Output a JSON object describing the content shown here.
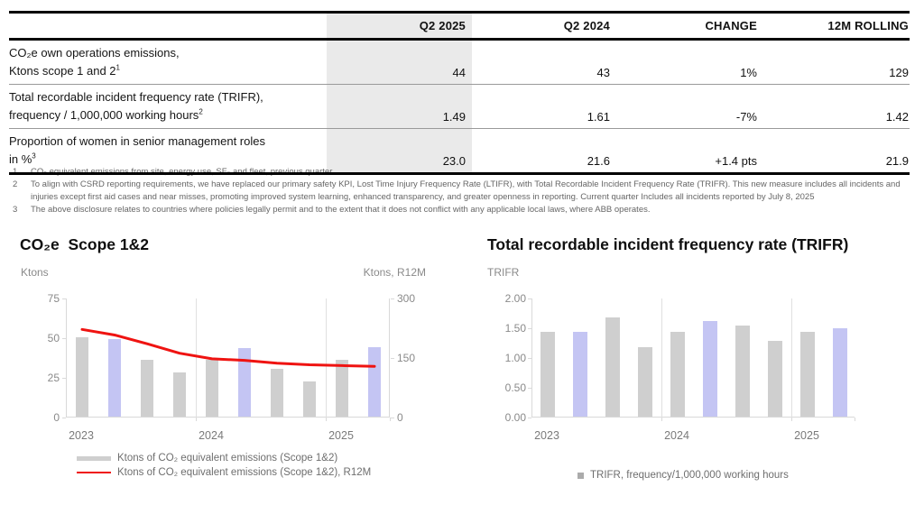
{
  "colors": {
    "text_black": "#111111",
    "muted_gray": "#6e6e6e",
    "band_gray": "#eaeaea",
    "bar_gray": "#cfcfcf",
    "bar_highlight": "#c4c5f3",
    "accent_red": "#ef1311",
    "legend_marker_gray": "#ababab",
    "axis_line_gray": "#d9d9d9"
  },
  "kpi_table": {
    "headers": {
      "metric": "",
      "q2_2025": "Q2 2025",
      "q2_2024": "Q2 2024",
      "change": "CHANGE",
      "rolling_12m": "12M ROLLING"
    },
    "rows": [
      {
        "label_line1": "CO₂e own operations emissions,",
        "label_line2": "Ktons scope 1 and 2",
        "sup": "1",
        "q2_2025": "44",
        "q2_2024": "43",
        "change": "1%",
        "rolling_12m": "129"
      },
      {
        "label_line1": "Total recordable incident frequency rate (TRIFR),",
        "label_line2": "frequency / 1,000,000 working hours",
        "sup": "2",
        "q2_2025": "1.49",
        "q2_2024": "1.61",
        "change": "-7%",
        "rolling_12m": "1.42"
      },
      {
        "label_line1": "Proportion of women in senior management roles",
        "label_line2": "in %",
        "sup": "3",
        "q2_2025": "23.0",
        "q2_2024": "21.6",
        "change": "+1.4 pts",
        "rolling_12m": "21.9"
      }
    ]
  },
  "footnotes": [
    {
      "num": "1",
      "text": "CO₂ equivalent emissions from site, energy use, SF₆ and fleet, previous quarter"
    },
    {
      "num": "2",
      "text": "To align with CSRD reporting requirements, we have replaced our primary safety KPI, Lost Time Injury Frequency Rate (LTIFR), with Total Recordable Incident Frequency Rate (TRIFR). This new measure includes all incidents and injuries except first aid cases and near misses, promoting improved system learning, enhanced transparency, and greater openness in reporting. Current quarter Includes all incidents reported by July 8, 2025"
    },
    {
      "num": "3",
      "text": "The above disclosure relates to countries where policies legally permit and to the extent that it does not conflict with any applicable local laws, where ABB operates."
    }
  ],
  "chart_data": [
    {
      "type": "bar",
      "title": "CO₂e  Scope 1&2",
      "left_axis": {
        "label": "Ktons",
        "ticks": [
          "75",
          "50",
          "25",
          "0"
        ],
        "min": 0,
        "max": 75
      },
      "right_axis": {
        "label": "Ktons, R12M",
        "ticks": [
          "300",
          "150",
          "0"
        ],
        "min": 0,
        "max": 300
      },
      "x_labels": [
        "2023",
        "2024",
        "2025"
      ],
      "x_note": "quarterly bars Q1 2023 through Q2 2025",
      "highlight_indices": [
        1,
        5,
        9
      ],
      "series": [
        {
          "name": "Ktons of CO₂ equivalent emissions (Scope 1&2)",
          "type": "bar",
          "axis": "left",
          "values": [
            50,
            49,
            36,
            28,
            36,
            43,
            30,
            22,
            36,
            44
          ]
        },
        {
          "name": "Ktons of CO₂ equivalent emissions (Scope 1&2), R12M",
          "type": "line",
          "axis": "right",
          "values": [
            222,
            208,
            186,
            162,
            148,
            144,
            137,
            133,
            131,
            129
          ]
        }
      ]
    },
    {
      "type": "bar",
      "title": "Total recordable incident frequency rate (TRIFR)",
      "left_axis": {
        "label": "TRIFR",
        "ticks": [
          "2.00",
          "1.50",
          "1.00",
          "0.50",
          "0.00"
        ],
        "min": 0,
        "max": 2
      },
      "x_labels": [
        "2023",
        "2024",
        "2025"
      ],
      "x_note": "quarterly bars Q1 2023 through Q2 2025",
      "highlight_indices": [
        1,
        5,
        9
      ],
      "series": [
        {
          "name": "TRIFR, frequency/1,000,000 working hours",
          "type": "bar",
          "axis": "left",
          "values": [
            1.43,
            1.43,
            1.66,
            1.17,
            1.42,
            1.61,
            1.53,
            1.27,
            1.42,
            1.49
          ]
        }
      ]
    }
  ]
}
